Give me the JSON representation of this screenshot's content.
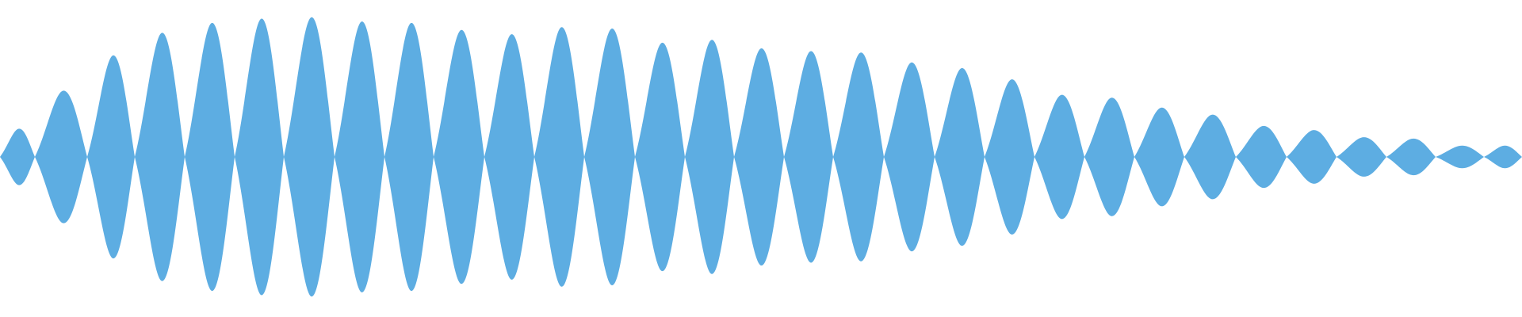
{
  "waveform": {
    "color": "#5DADE2",
    "background": "#FFFFFF",
    "lobe_peaks": [
      0.2,
      0.47,
      0.72,
      0.88,
      0.95,
      0.98,
      0.99,
      0.96,
      0.95,
      0.9,
      0.87,
      0.92,
      0.91,
      0.81,
      0.83,
      0.77,
      0.75,
      0.74,
      0.67,
      0.63,
      0.55,
      0.44,
      0.42,
      0.35,
      0.3,
      0.22,
      0.19,
      0.14,
      0.13,
      0.08,
      0.08,
      0.07
    ]
  }
}
